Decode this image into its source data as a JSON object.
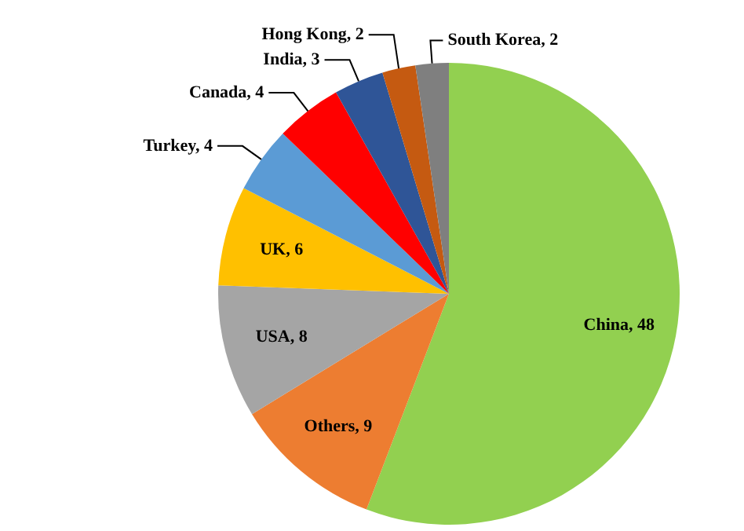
{
  "chart_data": {
    "type": "pie",
    "categories": [
      "China, 48",
      "Others, 9",
      "USA, 8",
      "UK, 6",
      "Turkey, 4",
      "Canada, 4",
      "India, 3",
      "Hong Kong, 2",
      "South Korea, 2"
    ],
    "values": [
      48,
      9,
      8,
      6,
      4,
      4,
      3,
      2,
      2
    ],
    "colors": [
      "#92d050",
      "#ed7d31",
      "#a5a5a5",
      "#ffc000",
      "#5b9bd5",
      "#ff0000",
      "#2f5597",
      "#c55a11",
      "#7f7f7f"
    ],
    "legend": false
  }
}
